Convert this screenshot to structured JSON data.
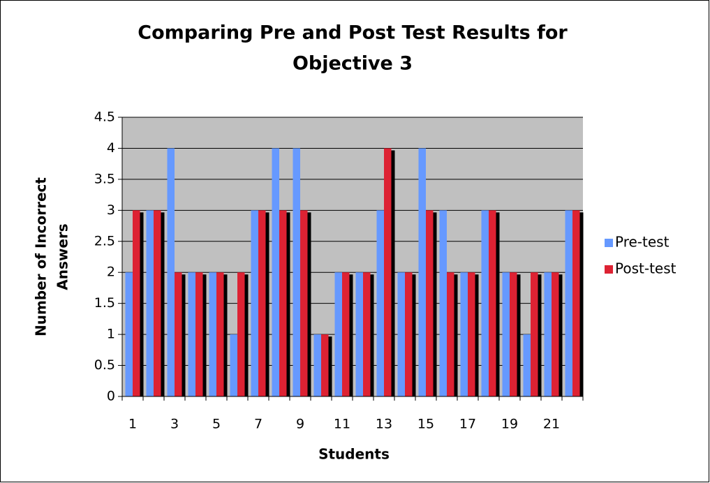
{
  "chart_data": {
    "type": "bar",
    "title": [
      "Comparing Pre and Post Test Results for",
      "Objective 3"
    ],
    "y_label": [
      "Number of Incorrect",
      "Answers"
    ],
    "x_label": "Students",
    "categories": [
      "1",
      null,
      "3",
      null,
      "5",
      null,
      "7",
      null,
      "9",
      null,
      "11",
      null,
      "13",
      null,
      "15",
      null,
      "17",
      null,
      "19",
      null,
      "21",
      null
    ],
    "series": [
      {
        "name": "Pre-test",
        "color": "#6699ff",
        "values": [
          2,
          3,
          4,
          2,
          2,
          1,
          3,
          4,
          4,
          1,
          2,
          2,
          3,
          2,
          4,
          3,
          2,
          3,
          2,
          1,
          2,
          3
        ]
      },
      {
        "name": "Post-test",
        "color": "#dd2233",
        "values": [
          3,
          3,
          2,
          2,
          2,
          2,
          3,
          3,
          3,
          1,
          2,
          2,
          4,
          2,
          3,
          2,
          2,
          3,
          2,
          2,
          2,
          3
        ]
      }
    ],
    "ylim": [
      0,
      4.5
    ],
    "yticks": [
      0,
      0.5,
      1,
      1.5,
      2,
      2.5,
      3,
      3.5,
      4,
      4.5
    ],
    "grid": true,
    "legend": "right"
  }
}
